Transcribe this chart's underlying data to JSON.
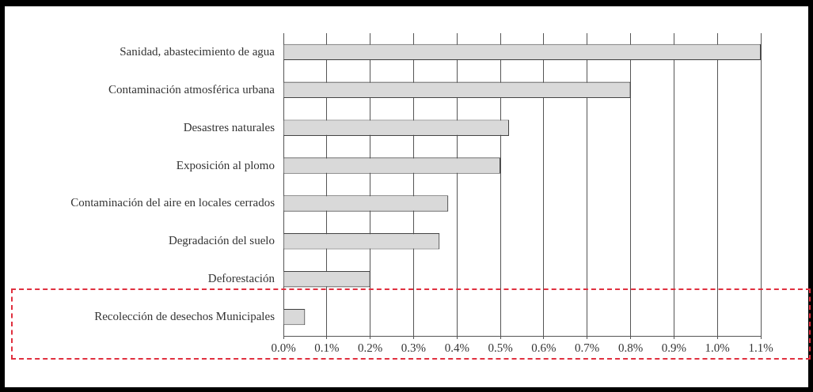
{
  "chart_data": {
    "type": "bar",
    "orientation": "horizontal",
    "categories": [
      "Sanidad, abastecimiento de agua",
      "Contaminación atmosférica urbana",
      "Desastres naturales",
      "Exposición al plomo",
      "Contaminación del aire en locales cerrados",
      "Degradación del suelo",
      "Deforestación",
      "Recolección de desechos Municipales"
    ],
    "values": [
      1.1,
      0.8,
      0.52,
      0.5,
      0.38,
      0.36,
      0.2,
      0.05
    ],
    "color": "#d9d9d9",
    "xlim": [
      0,
      1.1
    ],
    "xticks": [
      {
        "value": 0,
        "label": "0.0%"
      },
      {
        "value": 0.1,
        "label": "0.1%"
      },
      {
        "value": 0.2,
        "label": "0.2%"
      },
      {
        "value": 0.3,
        "label": "0.3%"
      },
      {
        "value": 0.4,
        "label": "0.4%"
      },
      {
        "value": 0.5,
        "label": "0.5%"
      },
      {
        "value": 0.6,
        "label": "0.6%"
      },
      {
        "value": 0.7,
        "label": "0.7%"
      },
      {
        "value": 0.8,
        "label": "0.8%"
      },
      {
        "value": 0.9,
        "label": "0.9%"
      },
      {
        "value": 1.0,
        "label": "1.0%"
      },
      {
        "value": 1.1,
        "label": "1.1%"
      }
    ],
    "grid": "x"
  }
}
